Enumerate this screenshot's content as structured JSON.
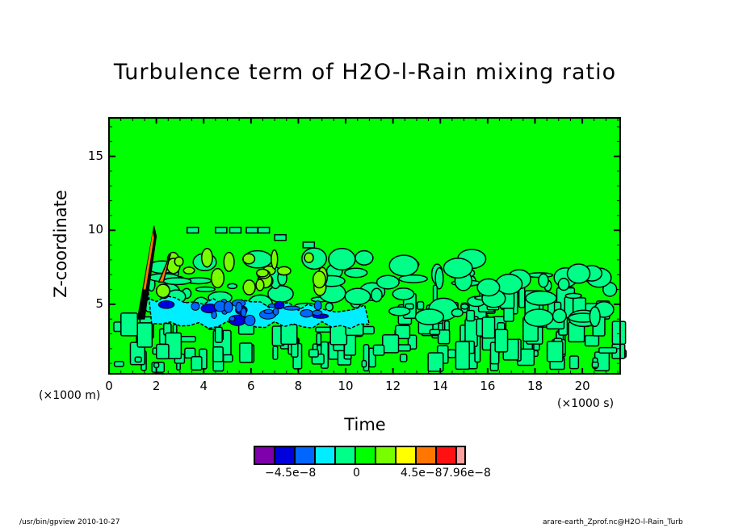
{
  "chart_data": {
    "type": "heatmap",
    "title": "Turbulence term of H2O-l-Rain mixing ratio",
    "xlabel": "Time",
    "ylabel": "Z-coordinate",
    "x_unit": "(×1000 s)",
    "y_unit": "(×1000 m)",
    "xlim": [
      0,
      21.6
    ],
    "ylim": [
      0.3,
      17.6
    ],
    "x_ticks": [
      "0",
      "2",
      "4",
      "6",
      "8",
      "10",
      "12",
      "14",
      "16",
      "18",
      "20"
    ],
    "x_tick_values": [
      0,
      2,
      4,
      6,
      8,
      10,
      12,
      14,
      16,
      18,
      20
    ],
    "y_ticks": [
      "5",
      "10",
      "15"
    ],
    "y_tick_values": [
      5,
      10,
      15
    ],
    "background_color": "#00ff00",
    "colorbar": {
      "colors": [
        "#7f00aa",
        "#0000dd",
        "#0066ff",
        "#00eeff",
        "#00ff88",
        "#00ff00",
        "#77ff00",
        "#ffff00",
        "#ff7700",
        "#ff1111",
        "#ffa0a0"
      ],
      "labels": [
        "−4.5e−8",
        "0",
        "4.5e−8",
        "7.96e−8"
      ],
      "label_text": [
        "−4.5e−8",
        "0",
        "4.5e−87.96e−8"
      ]
    },
    "features": [
      {
        "name": "negative-band",
        "x_range": [
          1.2,
          11
        ],
        "z_center": 4.3,
        "description_level": "cyan-blue"
      },
      {
        "name": "spike",
        "x_range": [
          1.2,
          2.0
        ],
        "z_range": [
          4,
          10.2
        ],
        "level": "positive-orange"
      }
    ]
  },
  "footer": {
    "left": "/usr/bin/gpview   2010-10-27",
    "right": "arare-earth_Zprof.nc@H2O-l-Rain_Turb"
  }
}
